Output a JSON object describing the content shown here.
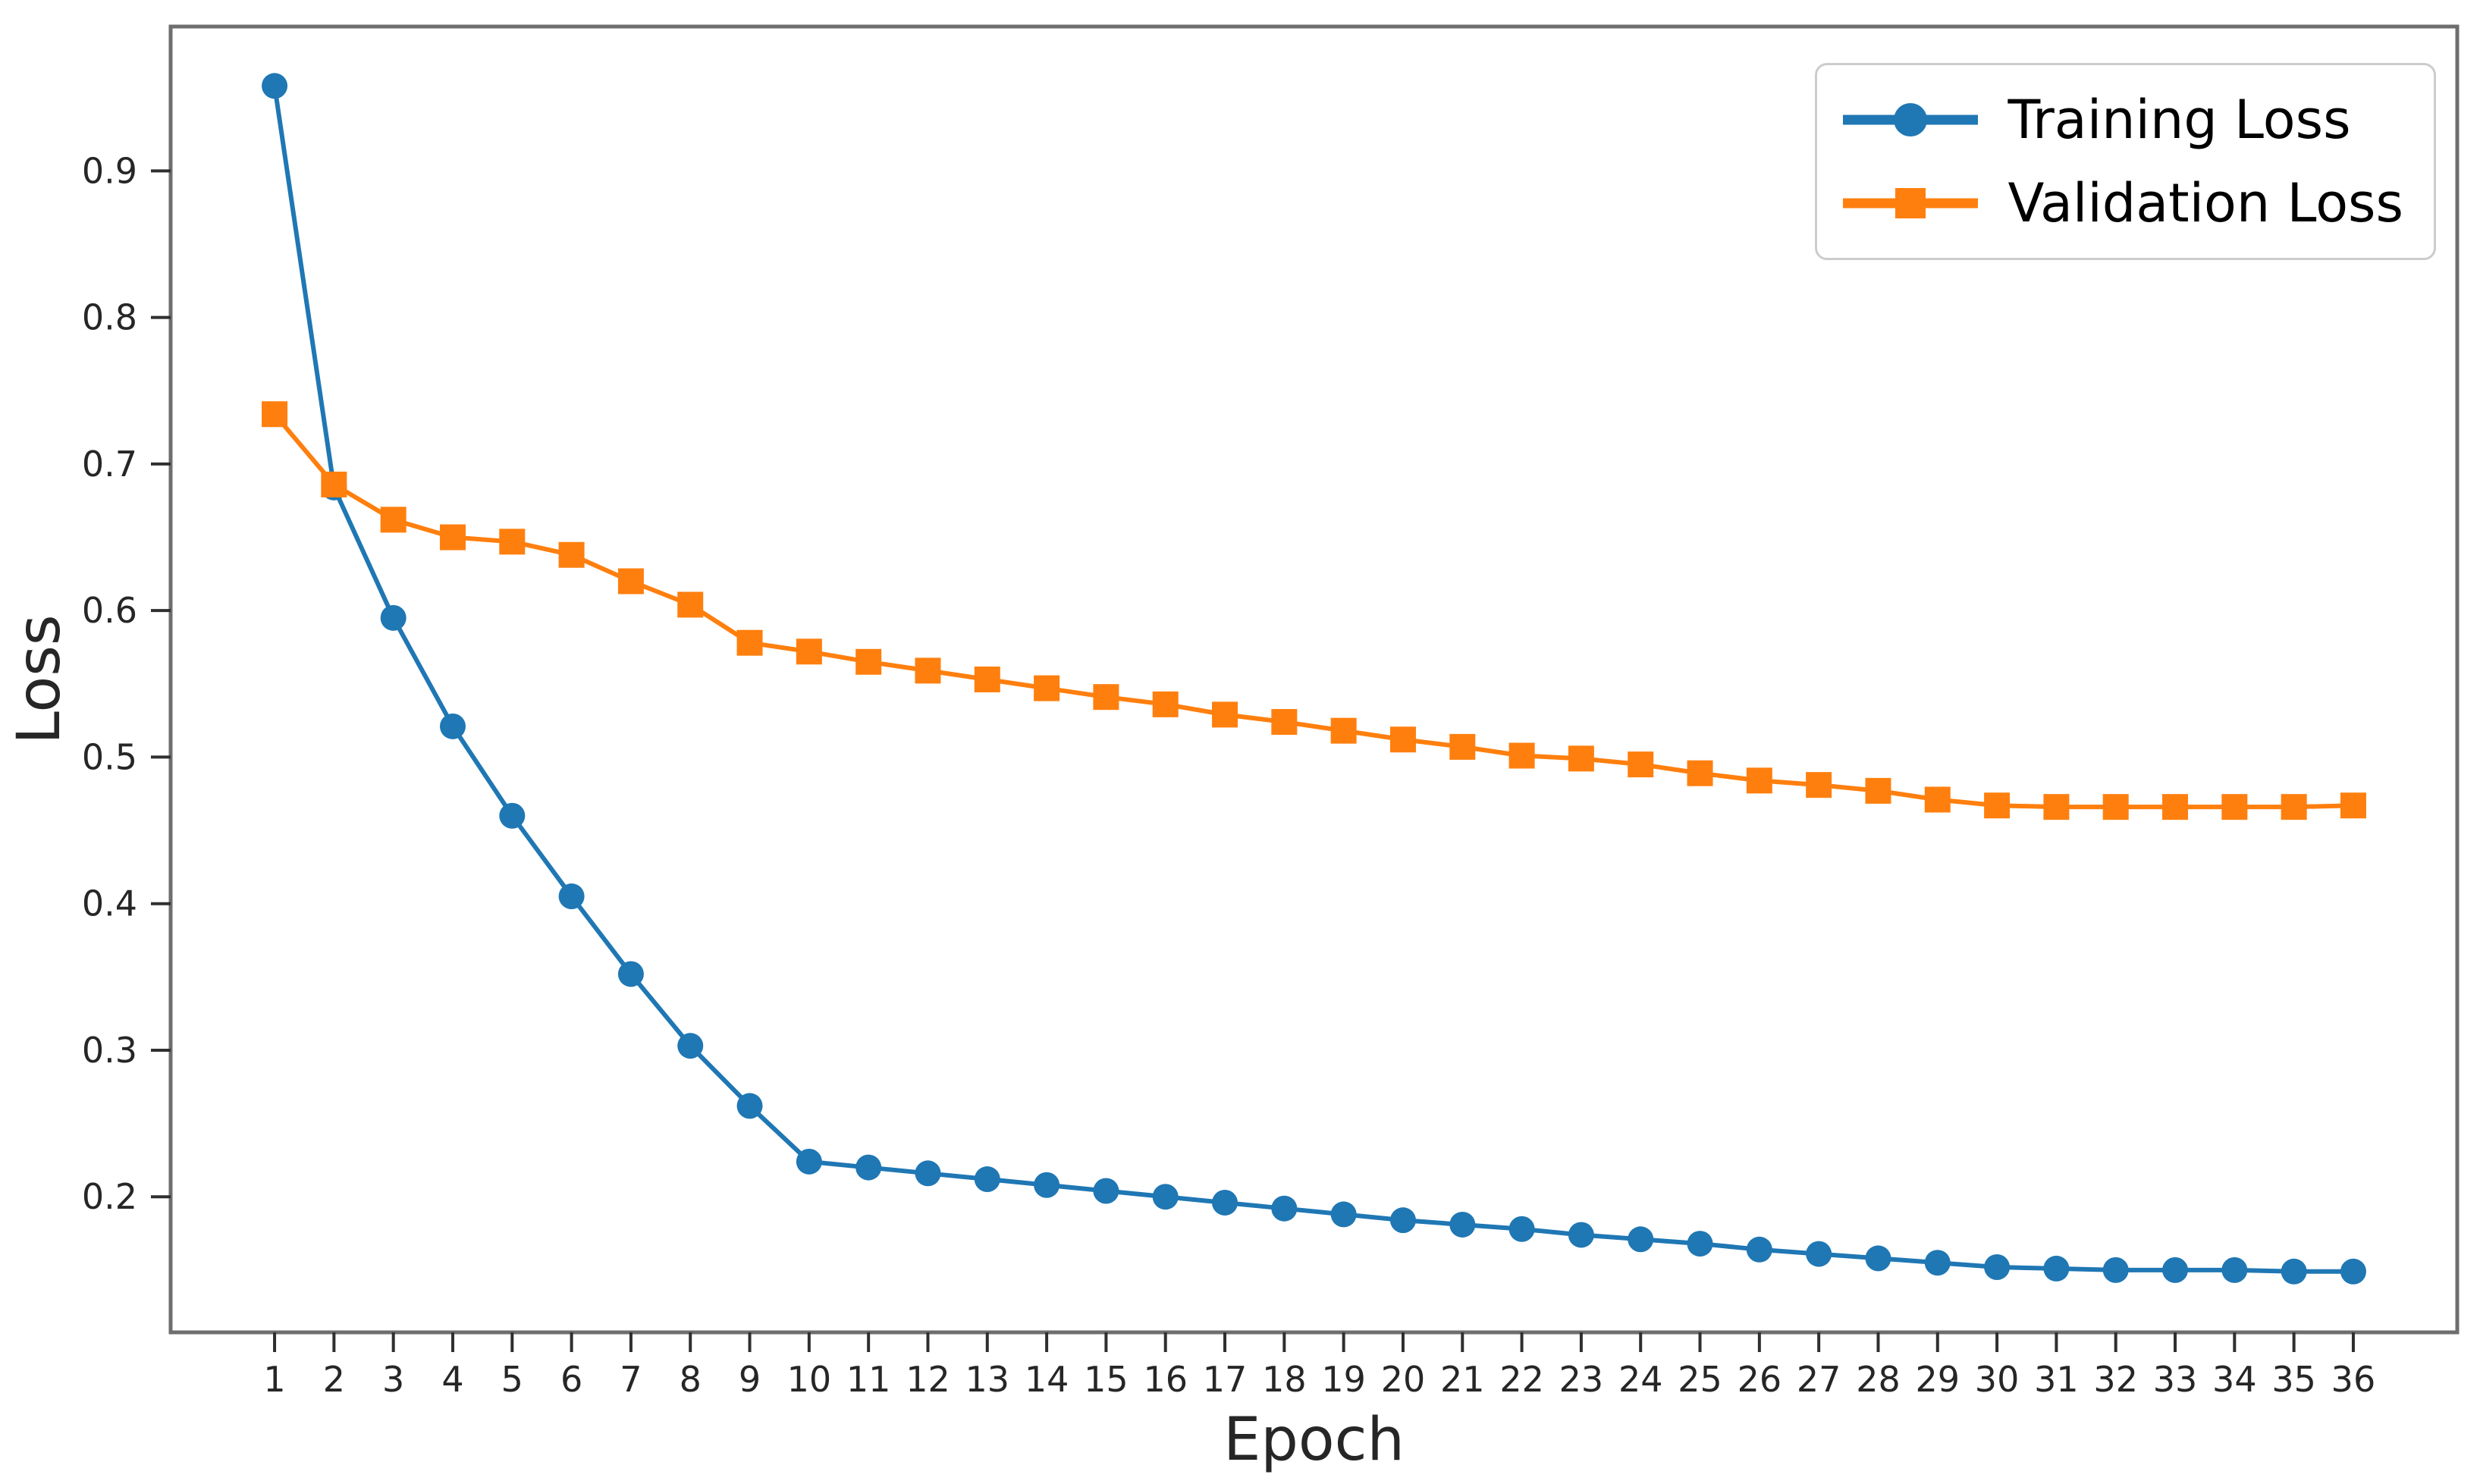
{
  "figure": {
    "background": "#ffffff"
  },
  "style": {
    "spine_color": "#6e6e6e",
    "tick_color": "#2f2f2f",
    "text_color": "#262626",
    "legend_border_color": "#cccccc",
    "training_color": "#1f77b4",
    "validation_color": "#ff7f0e"
  },
  "chart_data": {
    "type": "line",
    "title": "",
    "xlabel": "Epoch",
    "ylabel": "Loss",
    "grid": false,
    "legend_position": "upper-right",
    "xlim": [
      -0.75,
      37.75
    ],
    "ylim": [
      0.1075,
      0.9985
    ],
    "xticks": [
      1,
      2,
      3,
      4,
      5,
      6,
      7,
      8,
      9,
      10,
      11,
      12,
      13,
      14,
      15,
      16,
      17,
      18,
      19,
      20,
      21,
      22,
      23,
      24,
      25,
      26,
      27,
      28,
      29,
      30,
      31,
      32,
      33,
      34,
      35,
      36
    ],
    "yticks": [
      0.2,
      0.3,
      0.4,
      0.5,
      0.6,
      0.7,
      0.8,
      0.9
    ],
    "x": [
      1,
      2,
      3,
      4,
      5,
      6,
      7,
      8,
      9,
      10,
      11,
      12,
      13,
      14,
      15,
      16,
      17,
      18,
      19,
      20,
      21,
      22,
      23,
      24,
      25,
      26,
      27,
      28,
      29,
      30,
      31,
      32,
      33,
      34,
      35,
      36
    ],
    "series": [
      {
        "name": "Training Loss",
        "color": "#1f77b4",
        "marker": "circle",
        "values": [
          0.958,
          0.684,
          0.595,
          0.521,
          0.46,
          0.405,
          0.352,
          0.303,
          0.262,
          0.224,
          0.22,
          0.216,
          0.212,
          0.208,
          0.204,
          0.2,
          0.196,
          0.192,
          0.188,
          0.184,
          0.181,
          0.178,
          0.174,
          0.171,
          0.168,
          0.164,
          0.161,
          0.158,
          0.155,
          0.152,
          0.151,
          0.15,
          0.15,
          0.15,
          0.149,
          0.149
        ]
      },
      {
        "name": "Validation Loss",
        "color": "#ff7f0e",
        "marker": "square",
        "values": [
          0.734,
          0.686,
          0.662,
          0.65,
          0.647,
          0.638,
          0.62,
          0.604,
          0.578,
          0.572,
          0.565,
          0.559,
          0.553,
          0.547,
          0.541,
          0.536,
          0.529,
          0.524,
          0.518,
          0.512,
          0.507,
          0.501,
          0.499,
          0.495,
          0.489,
          0.484,
          0.481,
          0.477,
          0.471,
          0.467,
          0.466,
          0.466,
          0.466,
          0.466,
          0.466,
          0.467
        ]
      }
    ]
  }
}
